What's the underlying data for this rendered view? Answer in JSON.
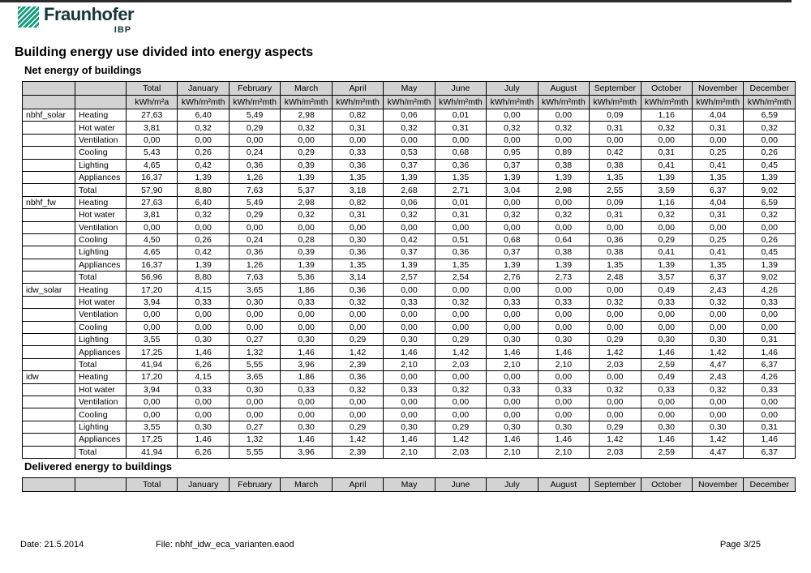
{
  "logo": {
    "brand": "Fraunhofer",
    "institute": "IBP",
    "green": "#179C7D"
  },
  "title": "Building energy use divided into energy aspects",
  "net_energy": {
    "heading": "Net energy of buildings",
    "col_headers": [
      "",
      "",
      "Total",
      "January",
      "February",
      "March",
      "April",
      "May",
      "June",
      "July",
      "August",
      "September",
      "October",
      "November",
      "December"
    ],
    "unit_headers": [
      "",
      "",
      "kWh/m²a",
      "kWh/m²mth",
      "kWh/m²mth",
      "kWh/m²mth",
      "kWh/m²mth",
      "kWh/m²mth",
      "kWh/m²mth",
      "kWh/m²mth",
      "kWh/m²mth",
      "kWh/m²mth",
      "kWh/m²mth",
      "kWh/m²mth",
      "kWh/m²mth"
    ],
    "groups": [
      {
        "name": "nbhf_solar",
        "rows": [
          {
            "label": "Heating",
            "values": [
              "27,63",
              "6,40",
              "5,49",
              "2,98",
              "0,82",
              "0,06",
              "0,01",
              "0,00",
              "0,00",
              "0,09",
              "1,16",
              "4,04",
              "6,59"
            ]
          },
          {
            "label": "Hot water",
            "values": [
              "3,81",
              "0,32",
              "0,29",
              "0,32",
              "0,31",
              "0,32",
              "0,31",
              "0,32",
              "0,32",
              "0,31",
              "0,32",
              "0,31",
              "0,32"
            ]
          },
          {
            "label": "Ventilation",
            "values": [
              "0,00",
              "0,00",
              "0,00",
              "0,00",
              "0,00",
              "0,00",
              "0,00",
              "0,00",
              "0,00",
              "0,00",
              "0,00",
              "0,00",
              "0,00"
            ]
          },
          {
            "label": "Cooling",
            "values": [
              "5,43",
              "0,26",
              "0,24",
              "0,29",
              "0,33",
              "0,53",
              "0,68",
              "0,95",
              "0,89",
              "0,42",
              "0,31",
              "0,25",
              "0,26"
            ]
          },
          {
            "label": "Lighting",
            "values": [
              "4,65",
              "0,42",
              "0,36",
              "0,39",
              "0,36",
              "0,37",
              "0,36",
              "0,37",
              "0,38",
              "0,38",
              "0,41",
              "0,41",
              "0,45"
            ]
          },
          {
            "label": "Appliances",
            "values": [
              "16,37",
              "1,39",
              "1,26",
              "1,39",
              "1,35",
              "1,39",
              "1,35",
              "1,39",
              "1,39",
              "1,35",
              "1,39",
              "1,35",
              "1,39"
            ]
          },
          {
            "label": "Total",
            "values": [
              "57,90",
              "8,80",
              "7,63",
              "5,37",
              "3,18",
              "2,68",
              "2,71",
              "3,04",
              "2,98",
              "2,55",
              "3,59",
              "6,37",
              "9,02"
            ]
          }
        ]
      },
      {
        "name": "nbhf_fw",
        "rows": [
          {
            "label": "Heating",
            "values": [
              "27,63",
              "6,40",
              "5,49",
              "2,98",
              "0,82",
              "0,06",
              "0,01",
              "0,00",
              "0,00",
              "0,09",
              "1,16",
              "4,04",
              "6,59"
            ]
          },
          {
            "label": "Hot water",
            "values": [
              "3,81",
              "0,32",
              "0,29",
              "0,32",
              "0,31",
              "0,32",
              "0,31",
              "0,32",
              "0,32",
              "0,31",
              "0,32",
              "0,31",
              "0,32"
            ]
          },
          {
            "label": "Ventilation",
            "values": [
              "0,00",
              "0,00",
              "0,00",
              "0,00",
              "0,00",
              "0,00",
              "0,00",
              "0,00",
              "0,00",
              "0,00",
              "0,00",
              "0,00",
              "0,00"
            ]
          },
          {
            "label": "Cooling",
            "values": [
              "4,50",
              "0,26",
              "0,24",
              "0,28",
              "0,30",
              "0,42",
              "0,51",
              "0,68",
              "0,64",
              "0,36",
              "0,29",
              "0,25",
              "0,26"
            ]
          },
          {
            "label": "Lighting",
            "values": [
              "4,65",
              "0,42",
              "0,36",
              "0,39",
              "0,36",
              "0,37",
              "0,36",
              "0,37",
              "0,38",
              "0,38",
              "0,41",
              "0,41",
              "0,45"
            ]
          },
          {
            "label": "Appliances",
            "values": [
              "16,37",
              "1,39",
              "1,26",
              "1,39",
              "1,35",
              "1,39",
              "1,35",
              "1,39",
              "1,39",
              "1,35",
              "1,39",
              "1,35",
              "1,39"
            ]
          },
          {
            "label": "Total",
            "values": [
              "56,96",
              "8,80",
              "7,63",
              "5,36",
              "3,14",
              "2,57",
              "2,54",
              "2,76",
              "2,73",
              "2,48",
              "3,57",
              "6,37",
              "9,02"
            ]
          }
        ]
      },
      {
        "name": "idw_solar",
        "rows": [
          {
            "label": "Heating",
            "values": [
              "17,20",
              "4,15",
              "3,65",
              "1,86",
              "0,36",
              "0,00",
              "0,00",
              "0,00",
              "0,00",
              "0,00",
              "0,49",
              "2,43",
              "4,26"
            ]
          },
          {
            "label": "Hot water",
            "values": [
              "3,94",
              "0,33",
              "0,30",
              "0,33",
              "0,32",
              "0,33",
              "0,32",
              "0,33",
              "0,33",
              "0,32",
              "0,33",
              "0,32",
              "0,33"
            ]
          },
          {
            "label": "Ventilation",
            "values": [
              "0,00",
              "0,00",
              "0,00",
              "0,00",
              "0,00",
              "0,00",
              "0,00",
              "0,00",
              "0,00",
              "0,00",
              "0,00",
              "0,00",
              "0,00"
            ]
          },
          {
            "label": "Cooling",
            "values": [
              "0,00",
              "0,00",
              "0,00",
              "0,00",
              "0,00",
              "0,00",
              "0,00",
              "0,00",
              "0,00",
              "0,00",
              "0,00",
              "0,00",
              "0,00"
            ]
          },
          {
            "label": "Lighting",
            "values": [
              "3,55",
              "0,30",
              "0,27",
              "0,30",
              "0,29",
              "0,30",
              "0,29",
              "0,30",
              "0,30",
              "0,29",
              "0,30",
              "0,30",
              "0,31"
            ]
          },
          {
            "label": "Appliances",
            "values": [
              "17,25",
              "1,46",
              "1,32",
              "1,46",
              "1,42",
              "1,46",
              "1,42",
              "1,46",
              "1,46",
              "1,42",
              "1,46",
              "1,42",
              "1,46"
            ]
          },
          {
            "label": "Total",
            "values": [
              "41,94",
              "6,26",
              "5,55",
              "3,96",
              "2,39",
              "2,10",
              "2,03",
              "2,10",
              "2,10",
              "2,03",
              "2,59",
              "4,47",
              "6,37"
            ]
          }
        ]
      },
      {
        "name": "idw",
        "rows": [
          {
            "label": "Heating",
            "values": [
              "17,20",
              "4,15",
              "3,65",
              "1,86",
              "0,36",
              "0,00",
              "0,00",
              "0,00",
              "0,00",
              "0,00",
              "0,49",
              "2,43",
              "4,26"
            ]
          },
          {
            "label": "Hot water",
            "values": [
              "3,94",
              "0,33",
              "0,30",
              "0,33",
              "0,32",
              "0,33",
              "0,32",
              "0,33",
              "0,33",
              "0,32",
              "0,33",
              "0,32",
              "0,33"
            ]
          },
          {
            "label": "Ventilation",
            "values": [
              "0,00",
              "0,00",
              "0,00",
              "0,00",
              "0,00",
              "0,00",
              "0,00",
              "0,00",
              "0,00",
              "0,00",
              "0,00",
              "0,00",
              "0,00"
            ]
          },
          {
            "label": "Cooling",
            "values": [
              "0,00",
              "0,00",
              "0,00",
              "0,00",
              "0,00",
              "0,00",
              "0,00",
              "0,00",
              "0,00",
              "0,00",
              "0,00",
              "0,00",
              "0,00"
            ]
          },
          {
            "label": "Lighting",
            "values": [
              "3,55",
              "0,30",
              "0,27",
              "0,30",
              "0,29",
              "0,30",
              "0,29",
              "0,30",
              "0,30",
              "0,29",
              "0,30",
              "0,30",
              "0,31"
            ]
          },
          {
            "label": "Appliances",
            "values": [
              "17,25",
              "1,46",
              "1,32",
              "1,46",
              "1,42",
              "1,46",
              "1,42",
              "1,46",
              "1,46",
              "1,42",
              "1,46",
              "1,42",
              "1,46"
            ]
          },
          {
            "label": "Total",
            "values": [
              "41,94",
              "6,26",
              "5,55",
              "3,96",
              "2,39",
              "2,10",
              "2,03",
              "2,10",
              "2,10",
              "2,03",
              "2,59",
              "4,47",
              "6,37"
            ]
          }
        ]
      }
    ]
  },
  "delivered_energy": {
    "heading": "Delivered energy to buildings",
    "col_headers": [
      "",
      "",
      "Total",
      "January",
      "February",
      "March",
      "April",
      "May",
      "June",
      "July",
      "August",
      "September",
      "October",
      "November",
      "December"
    ]
  },
  "footer": {
    "date": "Date: 21.5.2014",
    "file": "File: nbhf_idw_eca_varianten.eaod",
    "page": "Page 3/25"
  }
}
